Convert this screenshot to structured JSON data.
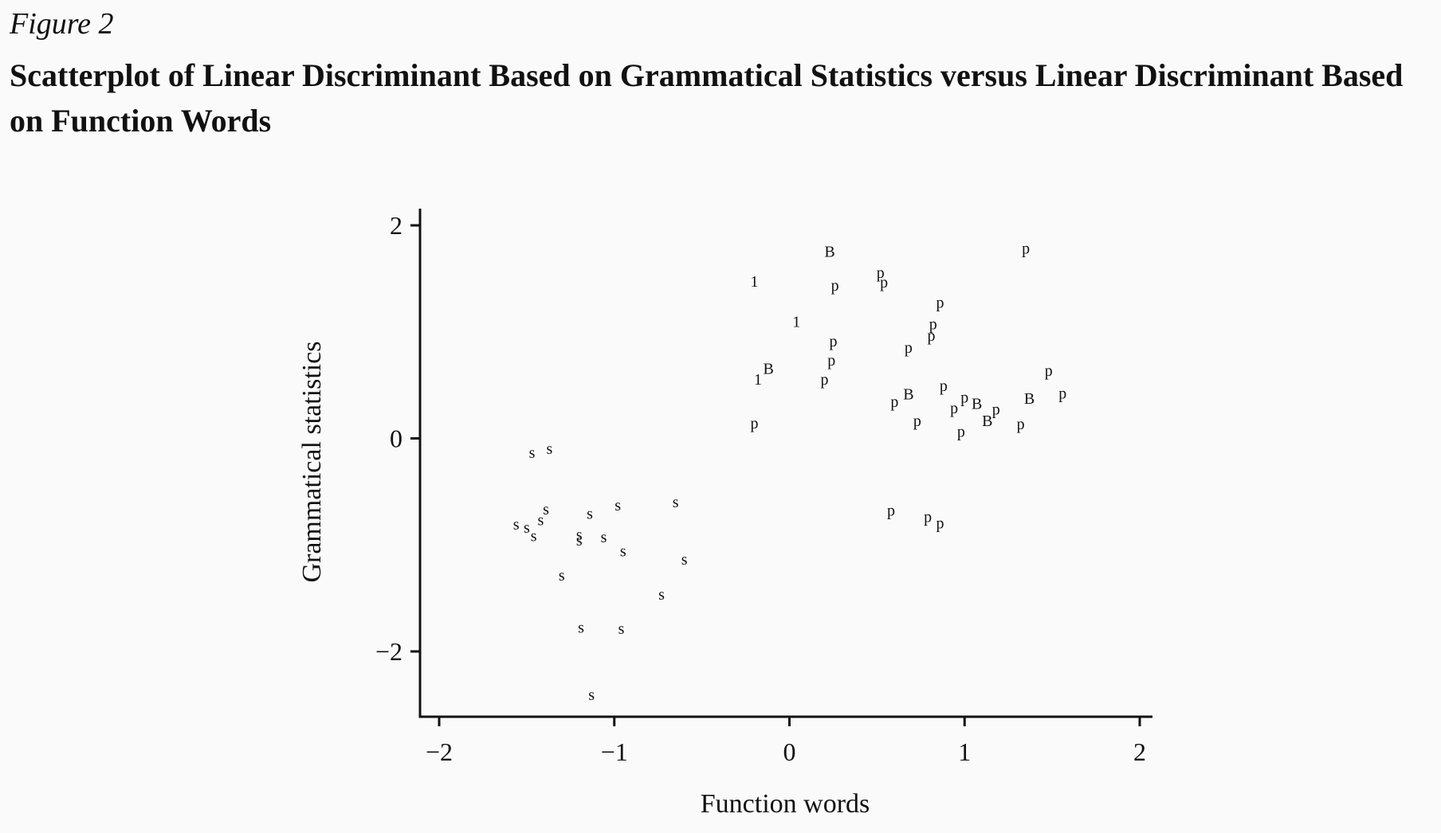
{
  "figure": {
    "label": "Figure 2",
    "title": "Scatterplot of Linear Discriminant Based on Grammatical Statistics versus Linear Discriminant Based on Function Words"
  },
  "chart_data": {
    "type": "scatter",
    "title": "",
    "xlabel": "Function words",
    "ylabel": "Grammatical statistics",
    "xlim": [
      -2.1,
      2.1
    ],
    "ylim": [
      -2.6,
      2.15
    ],
    "xticks": [
      -2,
      -1,
      0,
      1,
      2
    ],
    "xtick_labels": [
      "−2",
      "−1",
      "0",
      "1",
      "2"
    ],
    "yticks": [
      -2,
      0,
      2
    ],
    "ytick_labels": [
      "−2",
      "0",
      "2"
    ],
    "grid": false,
    "legend": "none",
    "points": [
      {
        "x": 0.23,
        "y": 1.75,
        "label": "B"
      },
      {
        "x": 1.35,
        "y": 1.78,
        "label": "p"
      },
      {
        "x": -0.2,
        "y": 1.47,
        "label": "1"
      },
      {
        "x": 0.26,
        "y": 1.43,
        "label": "p"
      },
      {
        "x": 0.52,
        "y": 1.55,
        "label": "p"
      },
      {
        "x": 0.54,
        "y": 1.46,
        "label": "p"
      },
      {
        "x": 0.86,
        "y": 1.27,
        "label": "p"
      },
      {
        "x": 0.04,
        "y": 1.09,
        "label": "1"
      },
      {
        "x": 0.82,
        "y": 1.07,
        "label": "p"
      },
      {
        "x": 0.81,
        "y": 0.96,
        "label": "p"
      },
      {
        "x": 0.25,
        "y": 0.91,
        "label": "p"
      },
      {
        "x": 0.68,
        "y": 0.85,
        "label": "p"
      },
      {
        "x": 0.24,
        "y": 0.73,
        "label": "p"
      },
      {
        "x": -0.12,
        "y": 0.65,
        "label": "B"
      },
      {
        "x": 1.48,
        "y": 0.63,
        "label": "p"
      },
      {
        "x": -0.18,
        "y": 0.55,
        "label": "1"
      },
      {
        "x": 0.2,
        "y": 0.55,
        "label": "p"
      },
      {
        "x": 0.88,
        "y": 0.49,
        "label": "p"
      },
      {
        "x": 1.56,
        "y": 0.42,
        "label": "p"
      },
      {
        "x": 0.68,
        "y": 0.41,
        "label": "B"
      },
      {
        "x": 1.37,
        "y": 0.37,
        "label": "B"
      },
      {
        "x": 1.0,
        "y": 0.38,
        "label": "p"
      },
      {
        "x": 0.6,
        "y": 0.34,
        "label": "p"
      },
      {
        "x": 1.07,
        "y": 0.32,
        "label": "B"
      },
      {
        "x": 0.94,
        "y": 0.28,
        "label": "p"
      },
      {
        "x": 1.18,
        "y": 0.27,
        "label": "p"
      },
      {
        "x": 0.73,
        "y": 0.16,
        "label": "p"
      },
      {
        "x": 1.13,
        "y": 0.16,
        "label": "B"
      },
      {
        "x": -0.2,
        "y": 0.14,
        "label": "p"
      },
      {
        "x": 1.32,
        "y": 0.13,
        "label": "p"
      },
      {
        "x": 0.98,
        "y": 0.06,
        "label": "p"
      },
      {
        "x": -1.37,
        "y": -0.1,
        "label": "s"
      },
      {
        "x": -1.47,
        "y": -0.14,
        "label": "s"
      },
      {
        "x": -0.65,
        "y": -0.6,
        "label": "s"
      },
      {
        "x": -0.98,
        "y": -0.63,
        "label": "s"
      },
      {
        "x": -1.39,
        "y": -0.67,
        "label": "s"
      },
      {
        "x": -1.14,
        "y": -0.71,
        "label": "s"
      },
      {
        "x": 0.58,
        "y": -0.68,
        "label": "p"
      },
      {
        "x": 0.79,
        "y": -0.74,
        "label": "p"
      },
      {
        "x": 0.86,
        "y": -0.8,
        "label": "p"
      },
      {
        "x": -1.42,
        "y": -0.77,
        "label": "s"
      },
      {
        "x": -1.56,
        "y": -0.81,
        "label": "s"
      },
      {
        "x": -1.5,
        "y": -0.84,
        "label": "s"
      },
      {
        "x": -1.2,
        "y": -0.91,
        "label": "s"
      },
      {
        "x": -1.46,
        "y": -0.92,
        "label": "s"
      },
      {
        "x": -1.06,
        "y": -0.93,
        "label": "s"
      },
      {
        "x": -1.2,
        "y": -0.96,
        "label": "s"
      },
      {
        "x": -0.95,
        "y": -1.06,
        "label": "s"
      },
      {
        "x": -0.6,
        "y": -1.14,
        "label": "s"
      },
      {
        "x": -1.3,
        "y": -1.29,
        "label": "s"
      },
      {
        "x": -0.73,
        "y": -1.47,
        "label": "s"
      },
      {
        "x": -1.19,
        "y": -1.78,
        "label": "s"
      },
      {
        "x": -0.96,
        "y": -1.79,
        "label": "s"
      },
      {
        "x": -1.13,
        "y": -2.41,
        "label": "s"
      }
    ]
  }
}
